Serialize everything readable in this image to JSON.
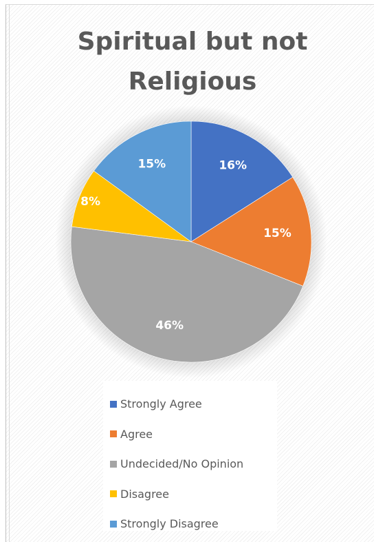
{
  "chart_data": {
    "type": "pie",
    "title": "Spiritual but not Religious",
    "slices": [
      {
        "label": "Strongly Agree",
        "value": 16,
        "display": "16%",
        "color": "#4472C4"
      },
      {
        "label": "Agree",
        "value": 15,
        "display": "15%",
        "color": "#ED7D31"
      },
      {
        "label": "Undecided/No Opinion",
        "value": 46,
        "display": "46%",
        "color": "#A5A5A5"
      },
      {
        "label": "Disagree",
        "value": 8,
        "display": "8%",
        "color": "#FFC000"
      },
      {
        "label": "Strongly Disagree",
        "value": 15,
        "display": "15%",
        "color": "#5B9BD5"
      }
    ],
    "legend_position": "bottom"
  }
}
